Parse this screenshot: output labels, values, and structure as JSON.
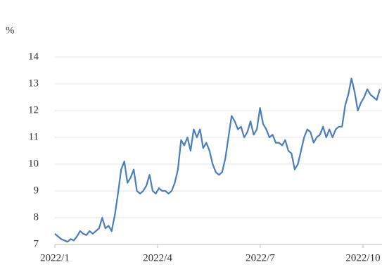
{
  "chart_data": {
    "type": "line",
    "y_unit": "%",
    "x_labels": [
      "2022/1",
      "2022/4",
      "2022/7",
      "2022/10"
    ],
    "series": [
      {
        "color": "#4a7ebb",
        "values": [
          7.4,
          7.3,
          7.2,
          7.15,
          7.1,
          7.2,
          7.15,
          7.3,
          7.5,
          7.4,
          7.35,
          7.5,
          7.4,
          7.5,
          7.6,
          8.0,
          7.6,
          7.7,
          7.5,
          8.1,
          8.9,
          9.8,
          10.1,
          9.3,
          9.5,
          9.8,
          9.0,
          8.9,
          9.0,
          9.2,
          9.6,
          9.0,
          8.9,
          9.1,
          9.0,
          9.0,
          8.9,
          9.0,
          9.3,
          9.8,
          10.9,
          10.7,
          11.0,
          10.5,
          11.3,
          11.0,
          11.3,
          10.6,
          10.8,
          10.5,
          10.0,
          9.7,
          9.6,
          9.7,
          10.2,
          11.0,
          11.8,
          11.6,
          11.3,
          11.4,
          11.0,
          11.2,
          11.6,
          11.1,
          11.3,
          12.1,
          11.5,
          11.3,
          11.0,
          11.1,
          10.8,
          10.8,
          10.7,
          10.9,
          10.5,
          10.4,
          9.8,
          10.0,
          10.5,
          11.0,
          11.3,
          11.2,
          10.8,
          11.0,
          11.1,
          11.4,
          11.0,
          11.3,
          11.0,
          11.3,
          11.4,
          11.4,
          12.2,
          12.6,
          13.2,
          12.7,
          12.0,
          12.3,
          12.5,
          12.8,
          12.6,
          12.5,
          12.4,
          12.8
        ]
      }
    ],
    "ylim": [
      7,
      14
    ],
    "yticks": [
      7,
      8,
      9,
      10,
      11,
      12,
      13,
      14
    ],
    "grid": true
  }
}
